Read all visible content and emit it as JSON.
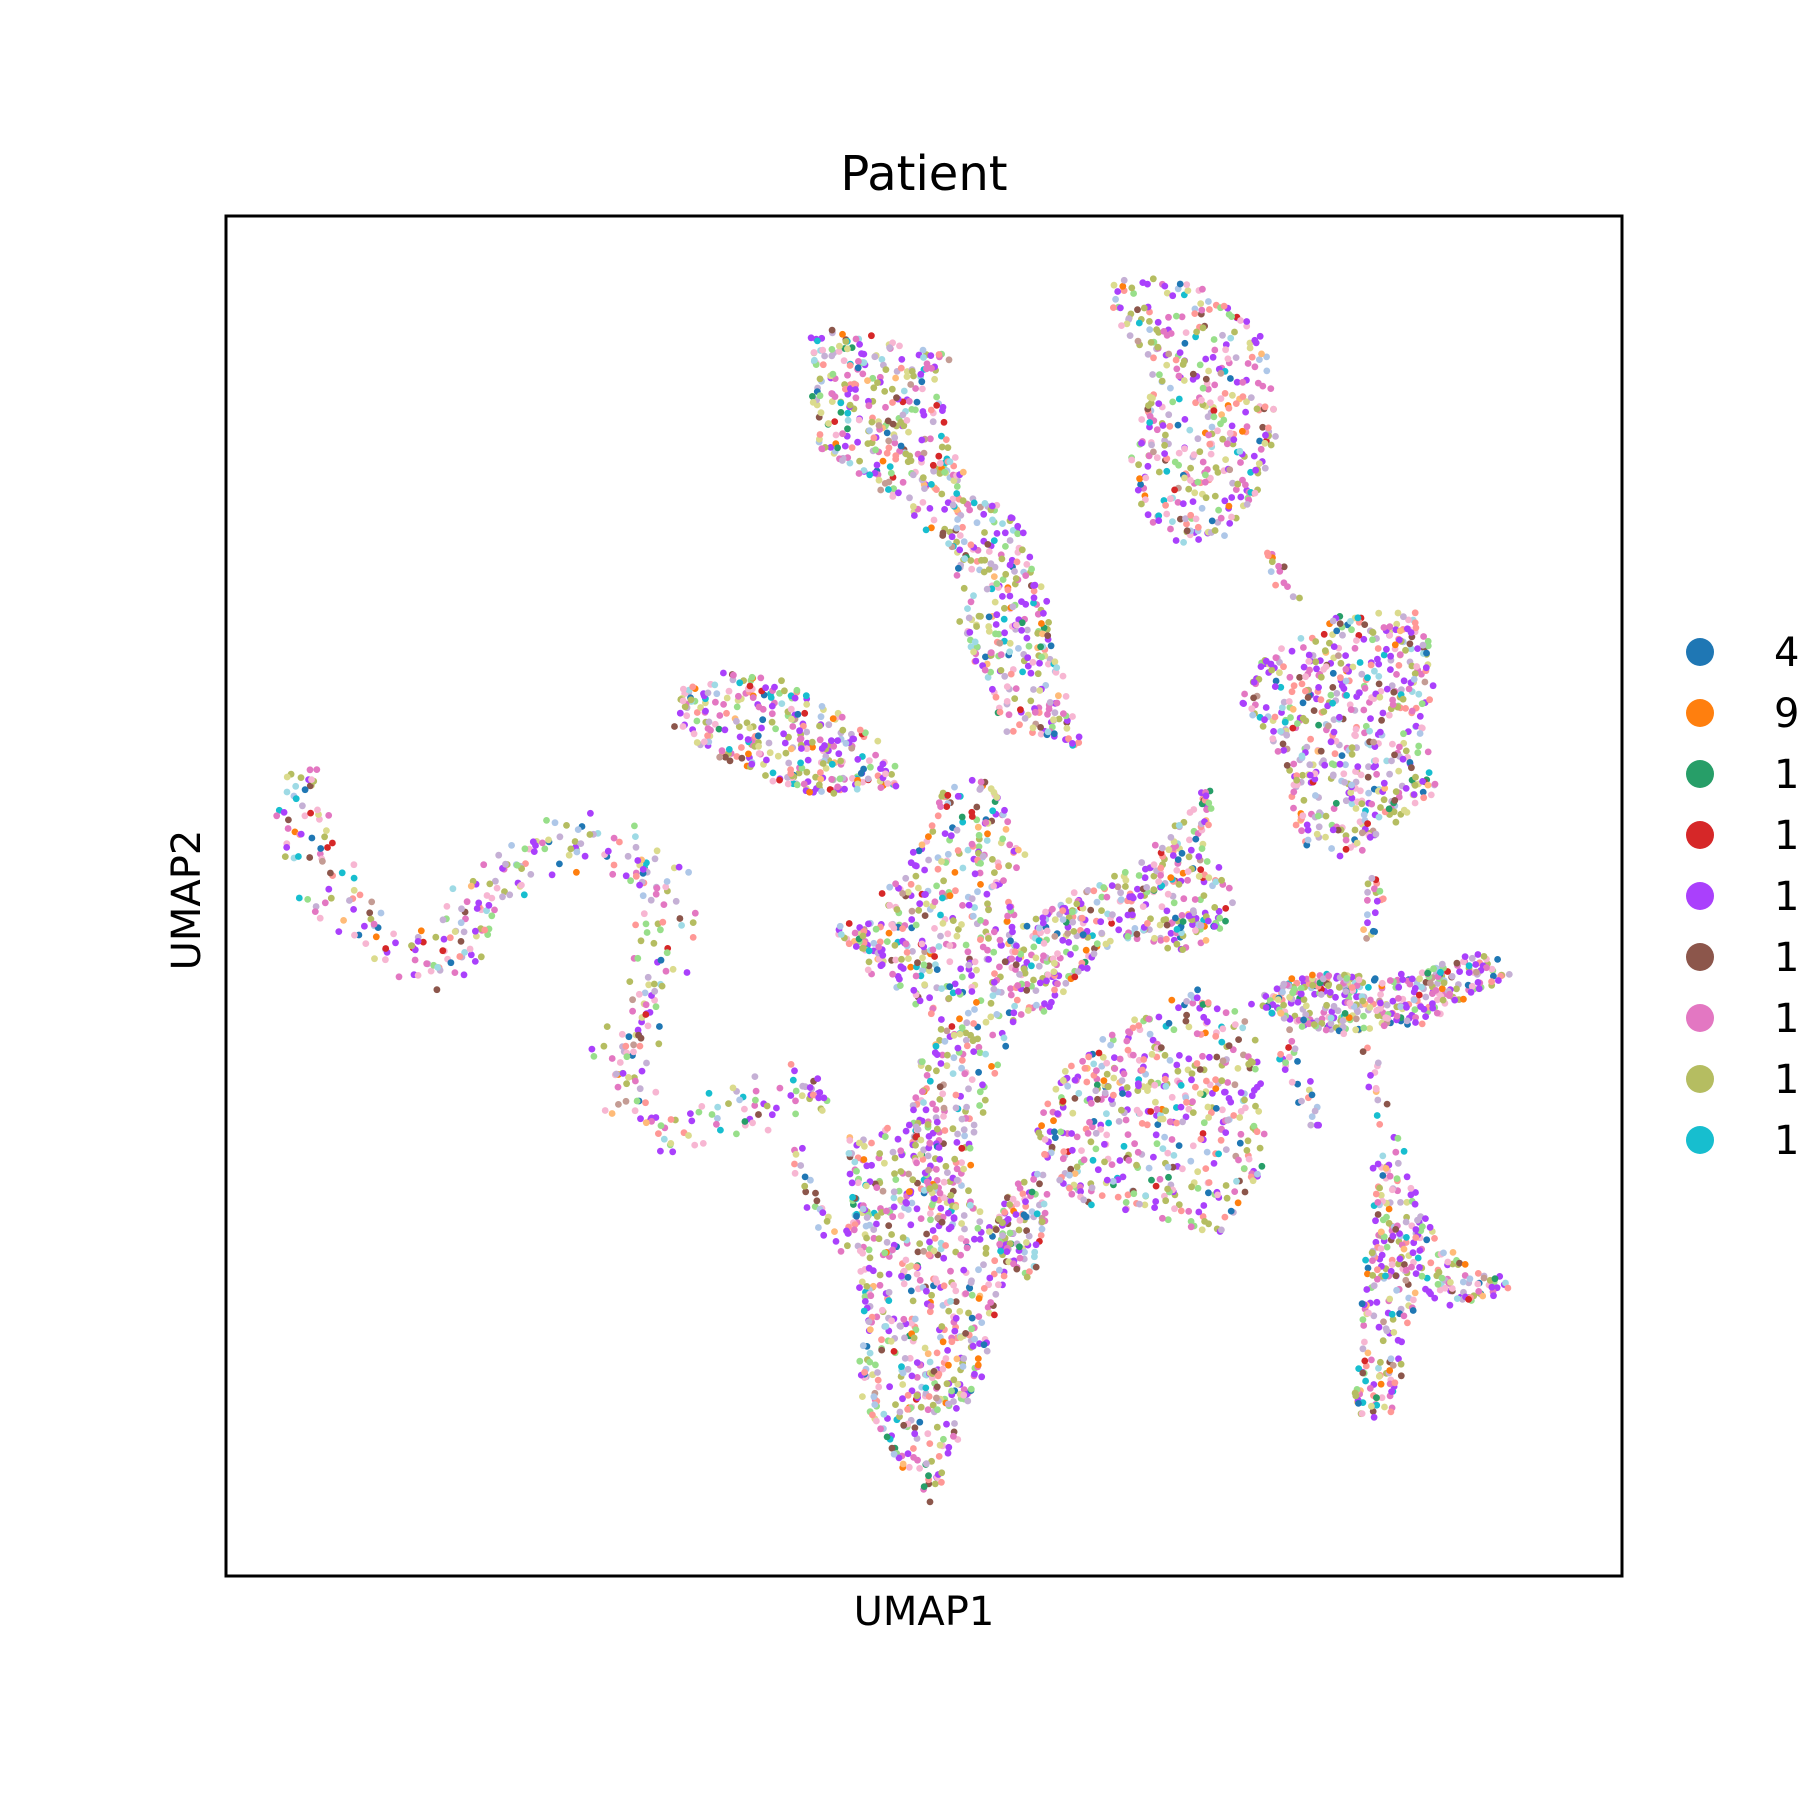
{
  "chart_data": {
    "type": "scatter",
    "title": "Patient",
    "xlabel": "UMAP1",
    "ylabel": "UMAP2",
    "xlim": [
      0,
      100
    ],
    "ylim": [
      0,
      100
    ],
    "xticks": [],
    "yticks": [],
    "grid": false,
    "legend_position": "right, clipped at figure edge",
    "legend": [
      {
        "label": "4",
        "color": "#1f77b4"
      },
      {
        "label": "9",
        "color": "#ff7f0e"
      },
      {
        "label": "1",
        "color": "#279e68"
      },
      {
        "label": "1",
        "color": "#d62728"
      },
      {
        "label": "1",
        "color": "#aa40fc"
      },
      {
        "label": "1",
        "color": "#8c564b"
      },
      {
        "label": "1",
        "color": "#e377c2"
      },
      {
        "label": "1",
        "color": "#b5bd61"
      },
      {
        "label": "1",
        "color": "#17becf"
      }
    ],
    "extra_point_colors": [
      "#aec7e8",
      "#ffbb78",
      "#98df8a",
      "#ff9896",
      "#c5b0d5",
      "#c49c94",
      "#f7b6d2",
      "#dbdb8d",
      "#9edae5"
    ],
    "clusters": [
      {
        "shape": "path",
        "points": [
          [
            5.7,
            59.5
          ],
          [
            5.2,
            56.8
          ],
          [
            6,
            53
          ],
          [
            8.5,
            49.3
          ],
          [
            12.5,
            45.5
          ],
          [
            15.5,
            45
          ],
          [
            17.4,
            47
          ],
          [
            19,
            51
          ],
          [
            23,
            53.6
          ],
          [
            27,
            54
          ],
          [
            30.5,
            52
          ],
          [
            31.5,
            47.5
          ],
          [
            30,
            41
          ],
          [
            28,
            37
          ],
          [
            30,
            33
          ],
          [
            32.5,
            32.5
          ],
          [
            35,
            34
          ],
          [
            38.5,
            35
          ],
          [
            43,
            35.8
          ]
        ],
        "width": 2.6,
        "count": 420
      },
      {
        "shape": "polygon",
        "points": [
          [
            42,
            91.5
          ],
          [
            51.5,
            90
          ],
          [
            51,
            84
          ],
          [
            54,
            79
          ],
          [
            56.5,
            78
          ],
          [
            58,
            73
          ],
          [
            60,
            65
          ],
          [
            61,
            61
          ],
          [
            56,
            62.5
          ],
          [
            53,
            69
          ],
          [
            52.5,
            75
          ],
          [
            46,
            81
          ],
          [
            42.5,
            83
          ]
        ],
        "count": 520
      },
      {
        "shape": "polygon",
        "points": [
          [
            63.5,
            95
          ],
          [
            70,
            95
          ],
          [
            74,
            91
          ],
          [
            75,
            85
          ],
          [
            74,
            80
          ],
          [
            72,
            77
          ],
          [
            68,
            76
          ],
          [
            66,
            78
          ],
          [
            65,
            82
          ],
          [
            66,
            86
          ],
          [
            67,
            88
          ],
          [
            64,
            92.5
          ]
        ],
        "count": 320
      },
      {
        "shape": "polygon",
        "points": [
          [
            80,
            70.5
          ],
          [
            85.5,
            70.5
          ],
          [
            86.5,
            66
          ],
          [
            85.5,
            62
          ],
          [
            86.5,
            58
          ],
          [
            83,
            55
          ],
          [
            80,
            53
          ],
          [
            77,
            54
          ],
          [
            76,
            60
          ],
          [
            73,
            64
          ],
          [
            74,
            67
          ],
          [
            77,
            69
          ]
        ],
        "count": 470
      },
      {
        "shape": "polygon",
        "points": [
          [
            32.5,
            65.2
          ],
          [
            36,
            66.2
          ],
          [
            41,
            65.2
          ],
          [
            47,
            61
          ],
          [
            48,
            58
          ],
          [
            42,
            57.5
          ],
          [
            36,
            60
          ],
          [
            32.5,
            62.5
          ]
        ],
        "count": 260
      },
      {
        "shape": "polygon",
        "points": [
          [
            49,
            52
          ],
          [
            52,
            58.5
          ],
          [
            55,
            58
          ],
          [
            57,
            53
          ],
          [
            55,
            50
          ],
          [
            58,
            48
          ],
          [
            57,
            42
          ],
          [
            55,
            38
          ],
          [
            53,
            30
          ],
          [
            51,
            25
          ],
          [
            49,
            33
          ],
          [
            51,
            41
          ],
          [
            48,
            44
          ],
          [
            45,
            47
          ]
        ],
        "count": 420
      },
      {
        "shape": "polygon",
        "points": [
          [
            59,
            49
          ],
          [
            66,
            52.5
          ],
          [
            70.5,
            58
          ],
          [
            70,
            53.5
          ],
          [
            72,
            50
          ],
          [
            70,
            46
          ],
          [
            64,
            47
          ],
          [
            61,
            44.5
          ],
          [
            60,
            42
          ],
          [
            57.5,
            41.5
          ],
          [
            56,
            46
          ]
        ],
        "count": 320
      },
      {
        "shape": "polygon",
        "points": [
          [
            69.5,
            43
          ],
          [
            73,
            41
          ],
          [
            74,
            36
          ],
          [
            74,
            29.5
          ],
          [
            71,
            25.5
          ],
          [
            66,
            27
          ],
          [
            60,
            28
          ],
          [
            58,
            33
          ],
          [
            60,
            37
          ],
          [
            64,
            40
          ]
        ],
        "count": 420
      },
      {
        "shape": "polygon",
        "points": [
          [
            73.5,
            42.5
          ],
          [
            78,
            44.3
          ],
          [
            84,
            44
          ],
          [
            89.5,
            45.5
          ],
          [
            92,
            44.5
          ],
          [
            86,
            41
          ],
          [
            81,
            40
          ],
          [
            76,
            40.5
          ]
        ],
        "count": 330
      },
      {
        "shape": "polygon",
        "points": [
          [
            82.5,
            30.5
          ],
          [
            84,
            31
          ],
          [
            85.5,
            27
          ],
          [
            88,
            23
          ],
          [
            92,
            21.5
          ],
          [
            89,
            20
          ],
          [
            85,
            21
          ],
          [
            84,
            16.5
          ],
          [
            83.5,
            11.5
          ],
          [
            81,
            12
          ],
          [
            81.5,
            20
          ],
          [
            82.5,
            26
          ]
        ],
        "count": 230
      },
      {
        "shape": "polygon",
        "points": [
          [
            44.5,
            32
          ],
          [
            49.5,
            33
          ],
          [
            53.5,
            28
          ],
          [
            56.5,
            25
          ],
          [
            55,
            20
          ],
          [
            54,
            15
          ],
          [
            52,
            10
          ],
          [
            50.5,
            5.5
          ],
          [
            48,
            9
          ],
          [
            45.5,
            13
          ],
          [
            46,
            19
          ],
          [
            45,
            25
          ]
        ],
        "count": 520
      },
      {
        "shape": "polygon",
        "points": [
          [
            55.5,
            27.5
          ],
          [
            58.5,
            30
          ],
          [
            58.5,
            25
          ],
          [
            57.5,
            22
          ],
          [
            55.5,
            23.5
          ]
        ],
        "count": 70
      },
      {
        "shape": "path",
        "points": [
          [
            41,
            31.5
          ],
          [
            42.5,
            27
          ],
          [
            45.5,
            23
          ]
        ],
        "width": 1.4,
        "count": 30
      },
      {
        "shape": "path",
        "points": [
          [
            44,
            48
          ],
          [
            47,
            45
          ],
          [
            50,
            45.5
          ]
        ],
        "width": 1.6,
        "count": 40
      },
      {
        "shape": "path",
        "points": [
          [
            74.5,
            75.5
          ],
          [
            75.5,
            73.5
          ],
          [
            76.5,
            71.5
          ]
        ],
        "width": 0.8,
        "count": 14
      },
      {
        "shape": "path",
        "points": [
          [
            82.5,
            51.5
          ],
          [
            82,
            49
          ],
          [
            81.5,
            46.5
          ]
        ],
        "width": 0.9,
        "count": 20
      },
      {
        "shape": "path",
        "points": [
          [
            82,
            39
          ],
          [
            82.5,
            35
          ],
          [
            83.5,
            32
          ]
        ],
        "width": 0.8,
        "count": 16
      },
      {
        "shape": "path",
        "points": [
          [
            75.5,
            39.5
          ],
          [
            77,
            36
          ],
          [
            78,
            33
          ]
        ],
        "width": 1.0,
        "count": 26
      }
    ]
  }
}
